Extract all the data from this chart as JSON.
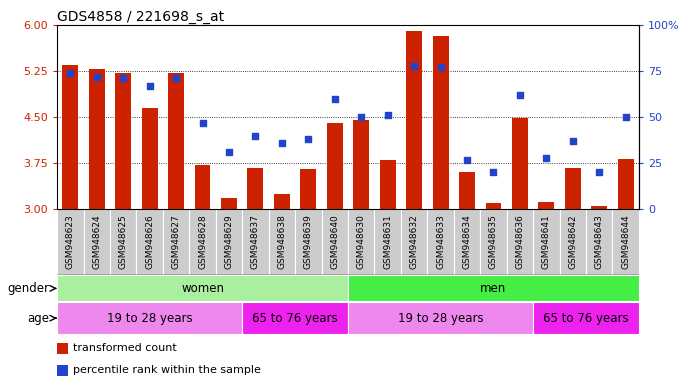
{
  "title": "GDS4858 / 221698_s_at",
  "samples": [
    "GSM948623",
    "GSM948624",
    "GSM948625",
    "GSM948626",
    "GSM948627",
    "GSM948628",
    "GSM948629",
    "GSM948637",
    "GSM948638",
    "GSM948639",
    "GSM948640",
    "GSM948630",
    "GSM948631",
    "GSM948632",
    "GSM948633",
    "GSM948634",
    "GSM948635",
    "GSM948636",
    "GSM948641",
    "GSM948642",
    "GSM948643",
    "GSM948644"
  ],
  "bar_values": [
    5.35,
    5.28,
    5.22,
    4.65,
    5.21,
    3.72,
    3.18,
    3.68,
    3.25,
    3.65,
    4.4,
    4.45,
    3.8,
    5.9,
    5.82,
    3.6,
    3.1,
    4.48,
    3.12,
    3.68,
    3.05,
    3.82
  ],
  "dot_percentiles": [
    74,
    72,
    71,
    67,
    71,
    47,
    31,
    40,
    36,
    38,
    60,
    50,
    51,
    78,
    77,
    27,
    20,
    62,
    28,
    37,
    20,
    50
  ],
  "bar_bottom": 3.0,
  "ylim_left": [
    3.0,
    6.0
  ],
  "ylim_right": [
    0,
    100
  ],
  "yticks_left": [
    3.0,
    3.75,
    4.5,
    5.25,
    6.0
  ],
  "yticks_right": [
    0,
    25,
    50,
    75,
    100
  ],
  "bar_color": "#cc2200",
  "dot_color": "#2244cc",
  "bg_color": "#ffffff",
  "tick_bg_color": "#cccccc",
  "left_axis_color": "#cc2200",
  "right_axis_color": "#2244cc",
  "gender_groups": [
    {
      "label": "women",
      "start": 0,
      "end": 11,
      "color": "#aaeea0"
    },
    {
      "label": "men",
      "start": 11,
      "end": 22,
      "color": "#44ee44"
    }
  ],
  "age_groups": [
    {
      "label": "19 to 28 years",
      "start": 0,
      "end": 7,
      "color": "#ee88ee"
    },
    {
      "label": "65 to 76 years",
      "start": 7,
      "end": 11,
      "color": "#ee22ee"
    },
    {
      "label": "19 to 28 years",
      "start": 11,
      "end": 18,
      "color": "#ee88ee"
    },
    {
      "label": "65 to 76 years",
      "start": 18,
      "end": 22,
      "color": "#ee22ee"
    }
  ],
  "legend_items": [
    {
      "color": "#cc2200",
      "label": "transformed count"
    },
    {
      "color": "#2244cc",
      "label": "percentile rank within the sample"
    }
  ],
  "title_fontsize": 10,
  "axis_tick_fontsize": 8,
  "sample_tick_fontsize": 6.5,
  "annotation_fontsize": 8.5,
  "legend_fontsize": 8
}
